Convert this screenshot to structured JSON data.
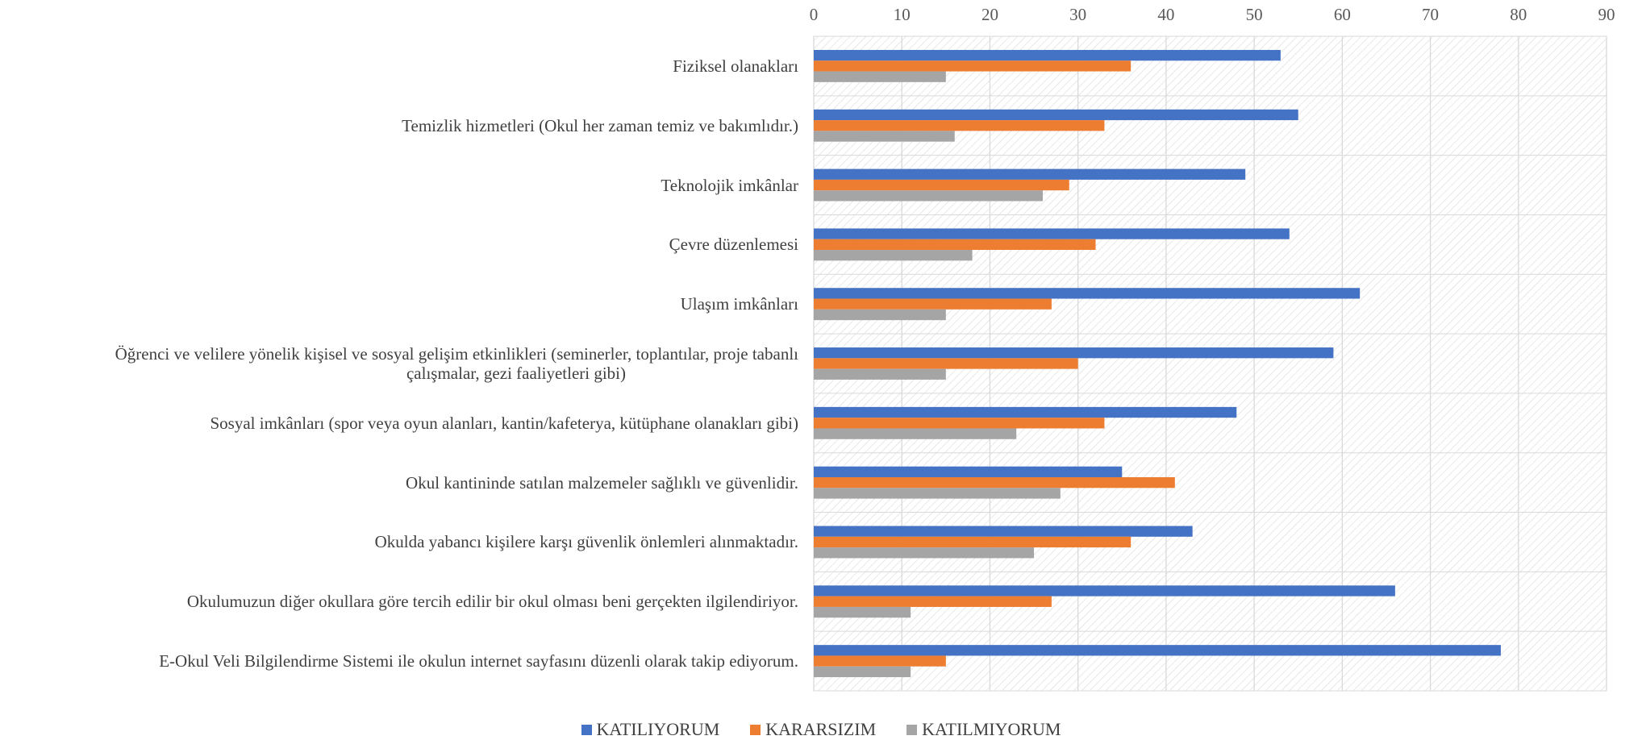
{
  "chart_data": {
    "type": "bar",
    "orientation": "horizontal",
    "categories": [
      "Fiziksel olanakları",
      "Temizlik hizmetleri (Okul her zaman temiz ve bakımlıdır.)",
      "Teknolojik imkânlar",
      "Çevre düzenlemesi",
      "Ulaşım imkânları",
      "Öğrenci ve velilere yönelik kişisel ve sosyal gelişim etkinlikleri (seminerler, toplantılar, proje tabanlı çalışmalar, gezi faaliyetleri gibi)",
      "Sosyal imkânları (spor veya oyun alanları, kantin/kafeterya, kütüphane olanakları gibi)",
      "Okul kantininde satılan malzemeler sağlıklı ve güvenlidir.",
      "Okulda yabancı kişilere karşı güvenlik önlemleri alınmaktadır.",
      "Okulumuzun diğer okullara göre tercih edilir bir okul olması beni gerçekten ilgilendiriyor.",
      "E-Okul Veli Bilgilendirme Sistemi ile okulun internet sayfasını düzenli olarak takip ediyorum."
    ],
    "category_lines": [
      [
        "Fiziksel olanakları"
      ],
      [
        "Temizlik hizmetleri (Okul her zaman temiz ve bakımlıdır.)"
      ],
      [
        "Teknolojik imkânlar"
      ],
      [
        "Çevre düzenlemesi"
      ],
      [
        "Ulaşım imkânları"
      ],
      [
        "Öğrenci ve velilere yönelik kişisel ve sosyal gelişim etkinlikleri (seminerler, toplantılar, proje tabanlı",
        "çalışmalar, gezi faaliyetleri gibi)"
      ],
      [
        "Sosyal imkânları (spor veya oyun alanları, kantin/kafeterya, kütüphane olanakları gibi)"
      ],
      [
        "Okul kantininde satılan malzemeler sağlıklı ve güvenlidir."
      ],
      [
        "Okulda yabancı kişilere karşı güvenlik önlemleri alınmaktadır."
      ],
      [
        "Okulumuzun diğer okullara göre tercih edilir bir okul olması beni gerçekten ilgilendiriyor."
      ],
      [
        "E-Okul Veli Bilgilendirme Sistemi ile okulun internet sayfasını düzenli olarak takip ediyorum."
      ]
    ],
    "series": [
      {
        "name": "KATILIYORUM",
        "color": "#4472C4",
        "values": [
          53,
          55,
          49,
          54,
          62,
          59,
          48,
          35,
          43,
          66,
          78
        ]
      },
      {
        "name": "KARARSIZIM",
        "color": "#ED7D31",
        "values": [
          36,
          33,
          29,
          32,
          27,
          30,
          33,
          41,
          36,
          27,
          15
        ]
      },
      {
        "name": "KATILMIYORUM",
        "color": "#A5A5A5",
        "values": [
          15,
          16,
          26,
          18,
          15,
          15,
          23,
          28,
          25,
          11,
          11
        ]
      }
    ],
    "xlim": [
      0,
      90
    ],
    "xticks": [
      0,
      10,
      20,
      30,
      40,
      50,
      60,
      70,
      80,
      90
    ],
    "x_axis_position": "top",
    "grid": true,
    "plot_background": "hatched",
    "legend_position": "bottom"
  }
}
